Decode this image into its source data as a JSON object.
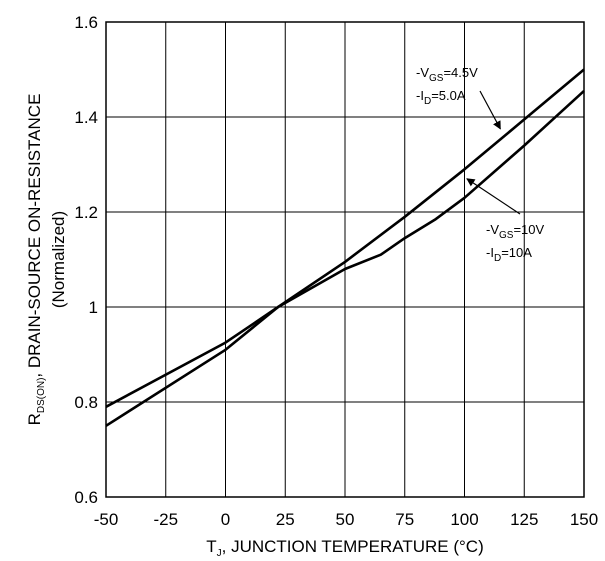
{
  "chart_data": {
    "type": "line",
    "xlabel": {
      "main": "T",
      "sub": "J",
      "rest": ", JUNCTION TEMPERATURE (°C)"
    },
    "ylabel": {
      "main": "R",
      "sub": "DS(ON)",
      "rest": ", DRAIN-SOURCE ON-RESISTANCE",
      "line2": "(Normalized)"
    },
    "xlim": [
      -50,
      150
    ],
    "ylim": [
      0.6,
      1.6
    ],
    "x_ticks": [
      -50,
      -25,
      0,
      25,
      50,
      75,
      100,
      125,
      150
    ],
    "y_ticks": [
      0.6,
      0.8,
      1,
      1.2,
      1.4,
      1.6
    ],
    "x_tick_labels": [
      "-50",
      "-25",
      "0",
      "25",
      "50",
      "75",
      "100",
      "125",
      "150"
    ],
    "y_tick_labels": [
      "0.6",
      "0.8",
      "1",
      "1.2",
      "1.4",
      "1.6"
    ],
    "grid": true,
    "series": [
      {
        "name": "-VGS=4.5V -ID=5.0A",
        "x": [
          -50,
          0,
          22,
          50,
          75,
          100,
          125,
          150
        ],
        "values": [
          0.79,
          0.925,
          1.0,
          1.095,
          1.19,
          1.29,
          1.395,
          1.5
        ]
      },
      {
        "name": "-VGS=10V -ID=10A",
        "x": [
          -50,
          0,
          22,
          50,
          65,
          75,
          88,
          100,
          125,
          150
        ],
        "values": [
          0.75,
          0.91,
          1.0,
          1.08,
          1.11,
          1.145,
          1.185,
          1.23,
          1.34,
          1.455
        ]
      }
    ],
    "annotations": [
      {
        "series": 0,
        "lines": [
          {
            "pre": "-V",
            "sub": "GS",
            "post": "=4.5V"
          },
          {
            "pre": "-I",
            "sub": "D",
            "post": "=5.0A"
          }
        ],
        "arrow_to": [
          115,
          1.375
        ]
      },
      {
        "series": 1,
        "lines": [
          {
            "pre": "-V",
            "sub": "GS",
            "post": "=10V"
          },
          {
            "pre": "-I",
            "sub": "D",
            "post": "=10A"
          }
        ],
        "arrow_to": [
          101,
          1.27
        ]
      }
    ]
  }
}
